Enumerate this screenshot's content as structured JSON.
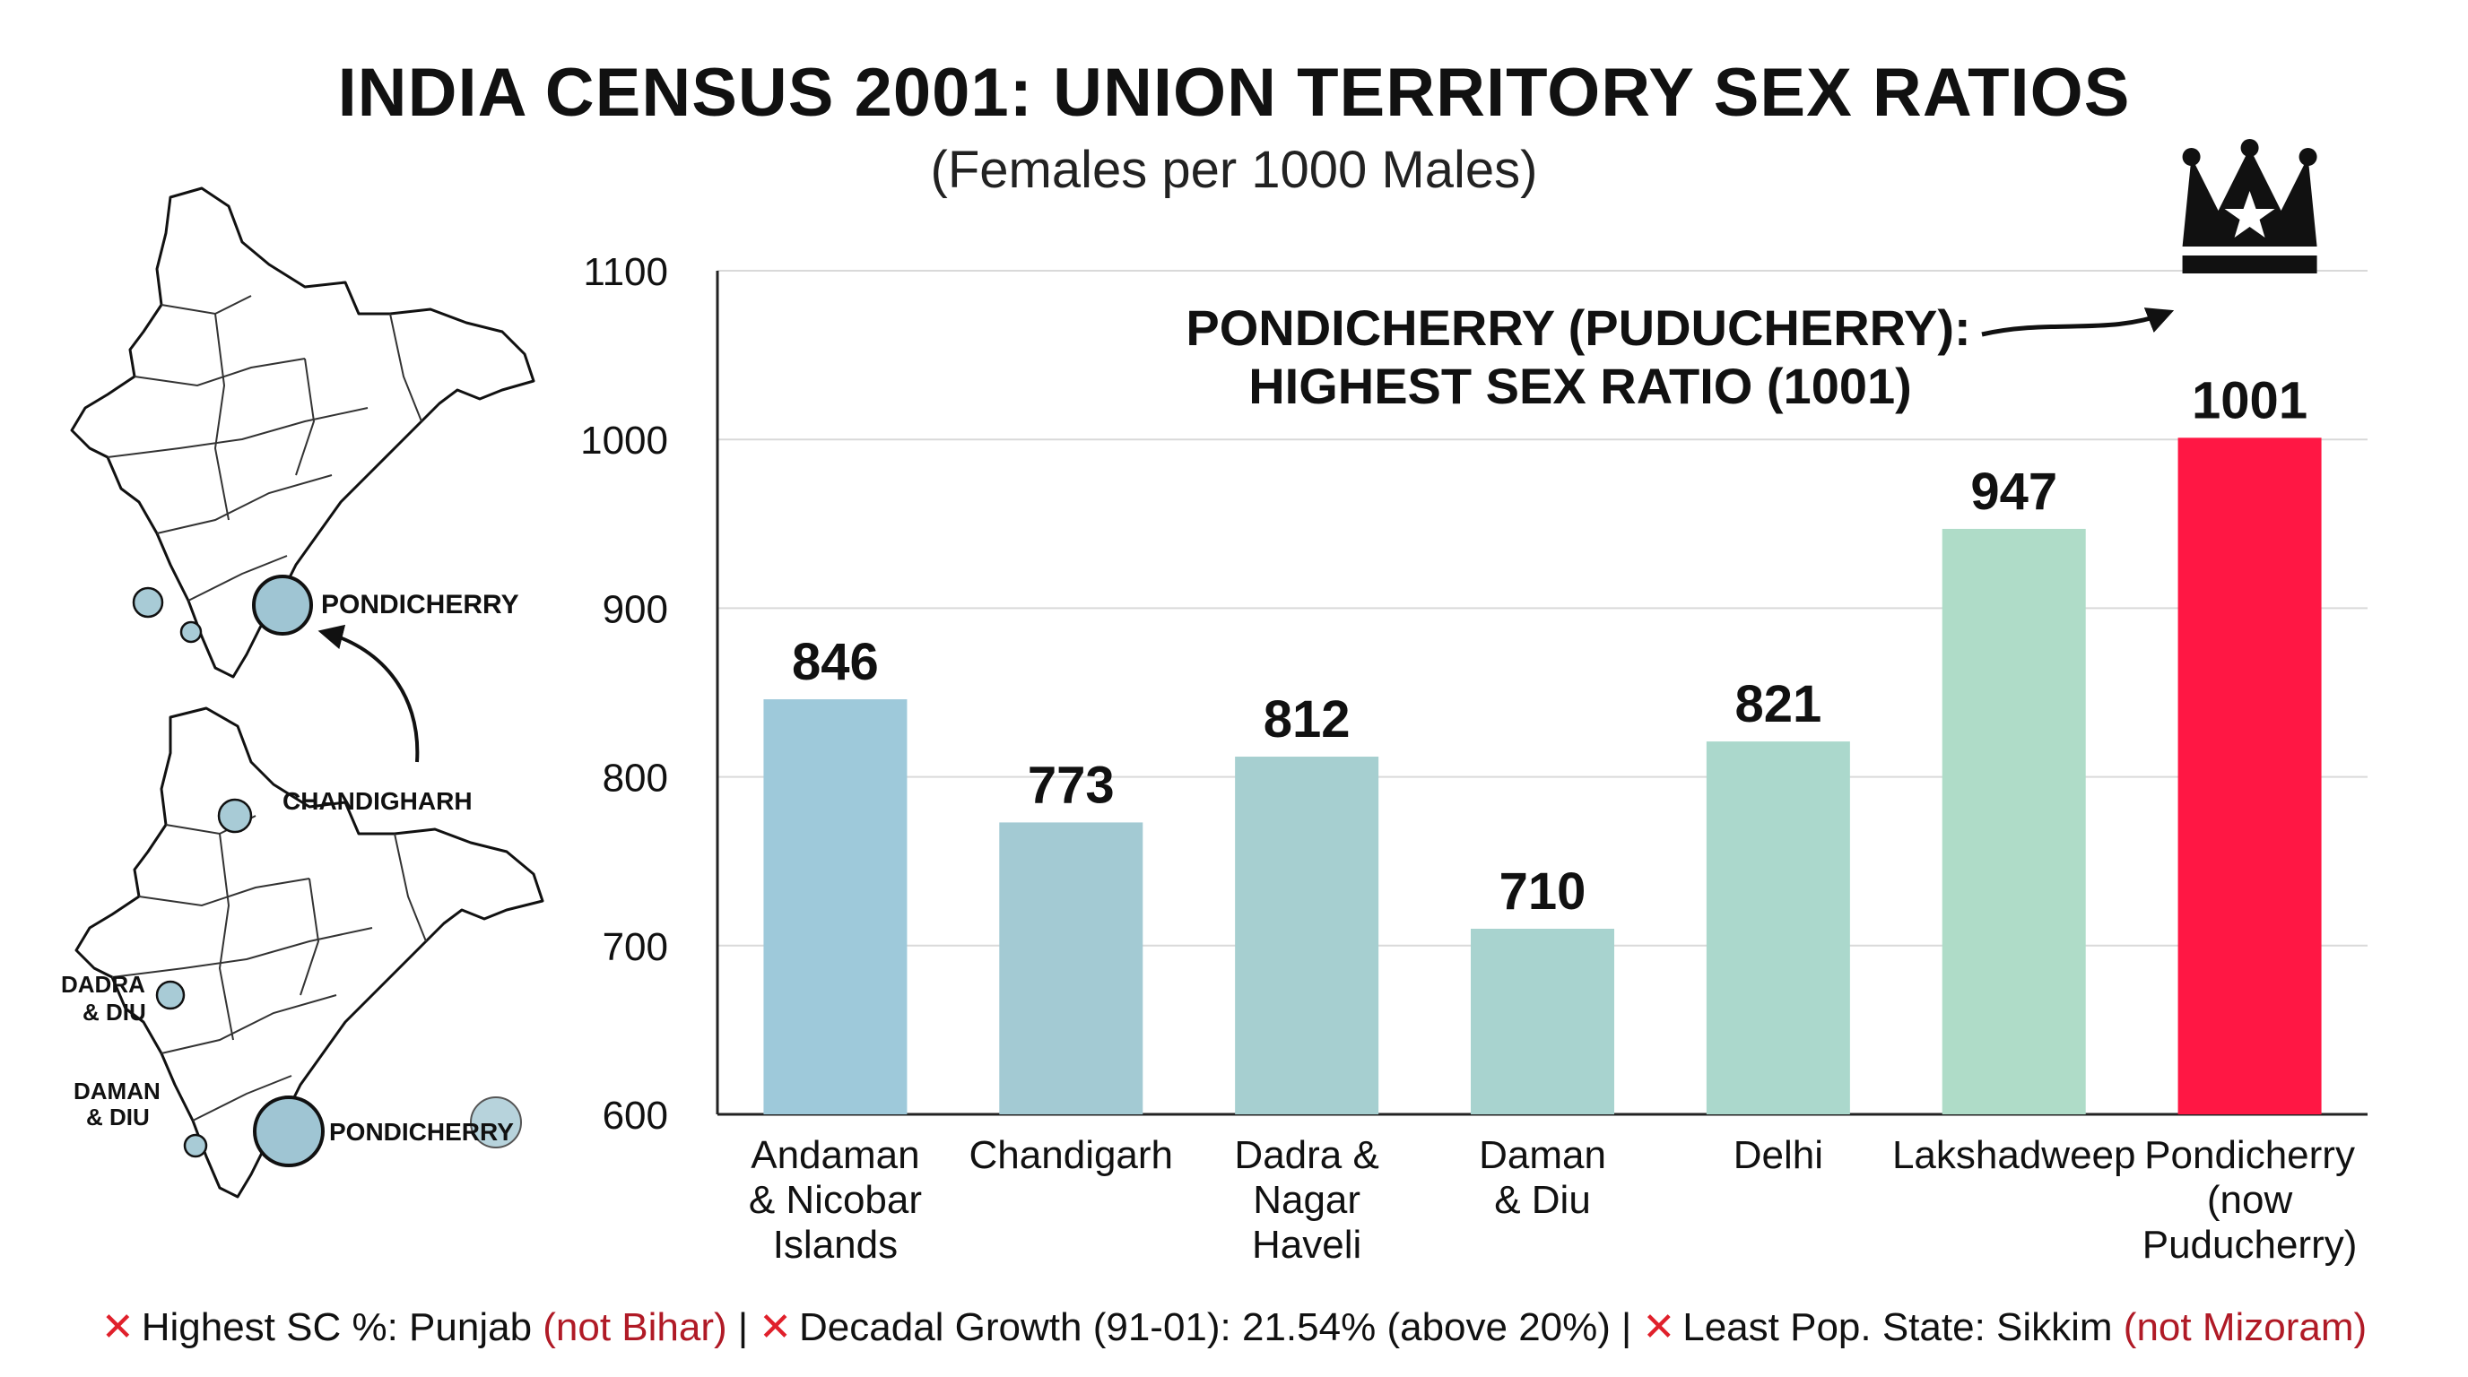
{
  "title": "INDIA CENSUS 2001: UNION TERRITORY SEX RATIOS",
  "subtitle": "(Females per 1000 Males)",
  "maps": {
    "top": {
      "labels": [
        "PONDICHERRY"
      ]
    },
    "bottom": {
      "labels": [
        "CHANDIGHARH",
        "DADRA",
        "& DIU",
        "DAMAN",
        "& DIU",
        "PONDICHERRY"
      ]
    }
  },
  "chart_data": {
    "type": "bar",
    "title": "INDIA CENSUS 2001: UNION TERRITORY SEX RATIOS",
    "subtitle": "(Females per 1000 Males)",
    "categories": [
      "Andaman & Nicobar Islands",
      "Chandigarh",
      "Dadra & Nagar Haveli",
      "Daman & Diu",
      "Delhi",
      "Lakshadweep",
      "Pondicherry (now Puducherry)"
    ],
    "category_lines": [
      [
        "Andaman",
        "& Nicobar",
        "Islands"
      ],
      [
        "Chandigarh"
      ],
      [
        "Dadra &",
        "Nagar",
        "Haveli"
      ],
      [
        "Daman",
        "& Diu"
      ],
      [
        "Delhi"
      ],
      [
        "Lakshadweep"
      ],
      [
        "Pondicherry",
        "(now",
        "Puducherry)"
      ]
    ],
    "values": [
      846,
      773,
      812,
      710,
      821,
      947,
      1001
    ],
    "ylim": [
      600,
      1100
    ],
    "yticks": [
      600,
      700,
      800,
      900,
      1000,
      1100
    ],
    "grid": true,
    "colors": [
      "#9ec9da",
      "#a3cad3",
      "#a6cfd0",
      "#a8d3cf",
      "#abd8cc",
      "#afdcc8",
      "#ff1744"
    ],
    "annotation": {
      "lines": [
        "PONDICHERRY (PUDUCHERRY):",
        "HIGHEST SEX RATIO (1001)"
      ],
      "target_index": 6,
      "icon": "crown-icon"
    }
  },
  "footer": {
    "items": [
      {
        "text": "Highest SC %: Punjab ",
        "neg": "(not Bihar)"
      },
      {
        "text": "Decadal Growth (91-01): 21.54% (above 20%)",
        "neg": ""
      },
      {
        "text": "Least Pop. State: Sikkim ",
        "neg": "(not Mizoram)"
      }
    ],
    "separator": "|",
    "mark": "✕"
  }
}
